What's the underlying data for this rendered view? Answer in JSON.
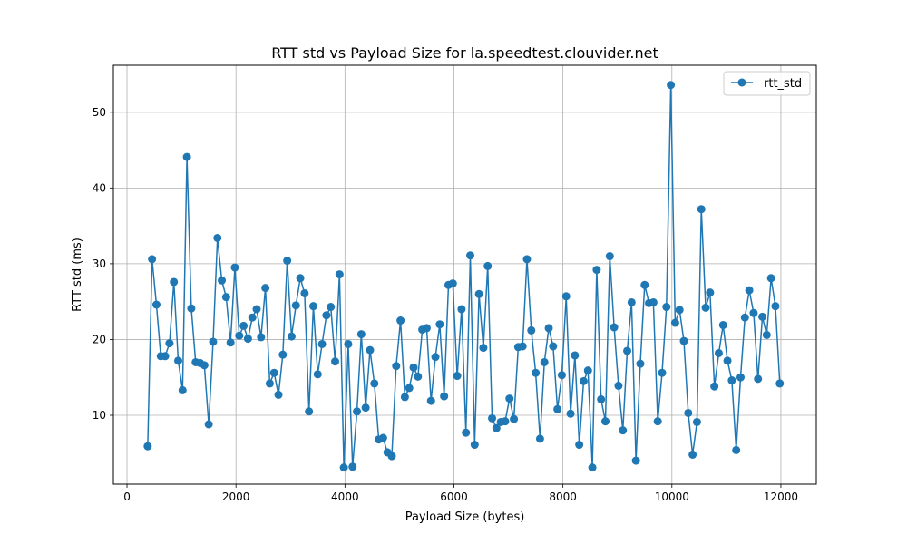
{
  "chart_data": {
    "type": "line",
    "title": "RTT std vs Payload Size for la.speedtest.clouvider.net",
    "xlabel": "Payload Size (bytes)",
    "ylabel": "RTT std (ms)",
    "xlim": [
      -250,
      12650
    ],
    "ylim": [
      0.9,
      56.2
    ],
    "xticks": [
      0,
      2000,
      4000,
      6000,
      8000,
      10000,
      12000
    ],
    "yticks": [
      10,
      20,
      30,
      40,
      50
    ],
    "grid": true,
    "legend_position": "top-right",
    "series": [
      {
        "name": "rtt_std",
        "color": "#1f77b4",
        "marker": "circle",
        "points": [
          [
            380,
            5.9
          ],
          [
            460,
            30.6
          ],
          [
            540,
            24.6
          ],
          [
            620,
            17.8
          ],
          [
            700,
            17.8
          ],
          [
            780,
            19.5
          ],
          [
            860,
            27.6
          ],
          [
            940,
            17.2
          ],
          [
            1020,
            13.3
          ],
          [
            1100,
            44.1
          ],
          [
            1180,
            24.1
          ],
          [
            1260,
            17.0
          ],
          [
            1340,
            16.9
          ],
          [
            1420,
            16.6
          ],
          [
            1500,
            8.8
          ],
          [
            1580,
            19.7
          ],
          [
            1660,
            33.4
          ],
          [
            1740,
            27.8
          ],
          [
            1820,
            25.6
          ],
          [
            1900,
            19.6
          ],
          [
            1980,
            29.5
          ],
          [
            2060,
            20.5
          ],
          [
            2140,
            21.8
          ],
          [
            2220,
            20.1
          ],
          [
            2300,
            22.9
          ],
          [
            2380,
            24.0
          ],
          [
            2460,
            20.3
          ],
          [
            2540,
            26.8
          ],
          [
            2620,
            14.2
          ],
          [
            2700,
            15.6
          ],
          [
            2780,
            12.7
          ],
          [
            2860,
            18.0
          ],
          [
            2940,
            30.4
          ],
          [
            3020,
            20.4
          ],
          [
            3100,
            24.5
          ],
          [
            3180,
            28.1
          ],
          [
            3260,
            26.1
          ],
          [
            3340,
            10.5
          ],
          [
            3420,
            24.4
          ],
          [
            3500,
            15.4
          ],
          [
            3580,
            19.4
          ],
          [
            3660,
            23.2
          ],
          [
            3740,
            24.3
          ],
          [
            3820,
            17.1
          ],
          [
            3900,
            28.6
          ],
          [
            3980,
            3.1
          ],
          [
            4060,
            19.4
          ],
          [
            4140,
            3.2
          ],
          [
            4220,
            10.5
          ],
          [
            4300,
            20.7
          ],
          [
            4380,
            11.0
          ],
          [
            4460,
            18.6
          ],
          [
            4540,
            14.2
          ],
          [
            4620,
            6.8
          ],
          [
            4700,
            7.0
          ],
          [
            4780,
            5.1
          ],
          [
            4860,
            4.6
          ],
          [
            4940,
            16.5
          ],
          [
            5020,
            22.5
          ],
          [
            5100,
            12.4
          ],
          [
            5180,
            13.6
          ],
          [
            5260,
            16.3
          ],
          [
            5340,
            15.1
          ],
          [
            5420,
            21.3
          ],
          [
            5500,
            21.5
          ],
          [
            5580,
            11.9
          ],
          [
            5660,
            17.7
          ],
          [
            5740,
            22.0
          ],
          [
            5820,
            12.5
          ],
          [
            5900,
            27.2
          ],
          [
            5980,
            27.4
          ],
          [
            6060,
            15.2
          ],
          [
            6140,
            24.0
          ],
          [
            6220,
            7.7
          ],
          [
            6300,
            31.1
          ],
          [
            6380,
            6.1
          ],
          [
            6460,
            26.0
          ],
          [
            6540,
            18.9
          ],
          [
            6620,
            29.7
          ],
          [
            6700,
            9.6
          ],
          [
            6780,
            8.3
          ],
          [
            6860,
            9.1
          ],
          [
            6940,
            9.2
          ],
          [
            7020,
            12.2
          ],
          [
            7100,
            9.5
          ],
          [
            7180,
            19.0
          ],
          [
            7260,
            19.1
          ],
          [
            7340,
            30.6
          ],
          [
            7420,
            21.2
          ],
          [
            7500,
            15.6
          ],
          [
            7580,
            6.9
          ],
          [
            7660,
            17.0
          ],
          [
            7740,
            21.5
          ],
          [
            7820,
            19.1
          ],
          [
            7900,
            10.8
          ],
          [
            7980,
            15.3
          ],
          [
            8060,
            25.7
          ],
          [
            8140,
            10.2
          ],
          [
            8220,
            17.9
          ],
          [
            8300,
            6.1
          ],
          [
            8380,
            14.5
          ],
          [
            8460,
            15.9
          ],
          [
            8540,
            3.1
          ],
          [
            8620,
            29.2
          ],
          [
            8700,
            12.1
          ],
          [
            8780,
            9.2
          ],
          [
            8860,
            31.0
          ],
          [
            8940,
            21.6
          ],
          [
            9020,
            13.9
          ],
          [
            9100,
            8.0
          ],
          [
            9180,
            18.5
          ],
          [
            9260,
            24.9
          ],
          [
            9340,
            4.0
          ],
          [
            9420,
            16.8
          ],
          [
            9500,
            27.2
          ],
          [
            9580,
            24.8
          ],
          [
            9660,
            24.9
          ],
          [
            9740,
            9.2
          ],
          [
            9820,
            15.6
          ],
          [
            9900,
            24.3
          ],
          [
            9980,
            53.6
          ],
          [
            10060,
            22.2
          ],
          [
            10140,
            23.9
          ],
          [
            10220,
            19.8
          ],
          [
            10300,
            10.3
          ],
          [
            10380,
            4.8
          ],
          [
            10460,
            9.1
          ],
          [
            10540,
            37.2
          ],
          [
            10620,
            24.2
          ],
          [
            10700,
            26.2
          ],
          [
            10780,
            13.8
          ],
          [
            10860,
            18.2
          ],
          [
            10940,
            21.9
          ],
          [
            11020,
            17.2
          ],
          [
            11100,
            14.6
          ],
          [
            11180,
            5.4
          ],
          [
            11260,
            15.0
          ],
          [
            11340,
            22.9
          ],
          [
            11420,
            26.5
          ],
          [
            11500,
            23.5
          ],
          [
            11580,
            14.8
          ],
          [
            11660,
            23.0
          ],
          [
            11740,
            20.6
          ],
          [
            11820,
            28.1
          ],
          [
            11900,
            24.4
          ],
          [
            11980,
            14.2
          ]
        ]
      }
    ]
  }
}
